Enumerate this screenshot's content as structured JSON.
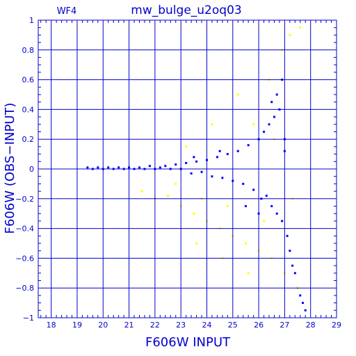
{
  "chart_data": {
    "type": "scatter",
    "title": "mw_bulge_u2oq03",
    "panel_label": "WF4",
    "xlabel": "F606W INPUT",
    "ylabel": "F606W (OBS−INPUT)",
    "xlim": [
      17.5,
      29
    ],
    "ylim": [
      -1,
      1
    ],
    "x_ticks": [
      "18",
      "19",
      "20",
      "21",
      "22",
      "23",
      "24",
      "25",
      "26",
      "27",
      "28",
      "29"
    ],
    "y_ticks": [
      "1",
      "0.8",
      "0.6",
      "0.4",
      "0.2",
      "0",
      "−0.2",
      "−0.4",
      "−0.6",
      "−0.8",
      "−1"
    ],
    "y_tick_values": [
      1,
      0.8,
      0.6,
      0.4,
      0.2,
      0,
      -0.2,
      -0.4,
      -0.6,
      -0.8,
      -1
    ],
    "grid": true,
    "colors": {
      "axis": "#0000cc",
      "blue_series": "#0000ff",
      "yellow_series": "#ffff00",
      "background": "#ffffff"
    },
    "series": [
      {
        "color": "#0000ff",
        "points": [
          [
            19.4,
            0.01
          ],
          [
            19.6,
            0.0
          ],
          [
            19.8,
            0.01
          ],
          [
            20.0,
            0.0
          ],
          [
            20.2,
            0.01
          ],
          [
            20.4,
            0.0
          ],
          [
            20.6,
            0.01
          ],
          [
            20.8,
            0.0
          ],
          [
            21.0,
            0.01
          ],
          [
            21.2,
            0.0
          ],
          [
            21.4,
            0.01
          ],
          [
            21.6,
            0.0
          ],
          [
            21.8,
            0.02
          ],
          [
            22.0,
            0.0
          ],
          [
            22.2,
            0.01
          ],
          [
            22.4,
            0.02
          ],
          [
            22.6,
            0.0
          ],
          [
            22.8,
            0.03
          ],
          [
            23.0,
            0.0
          ],
          [
            23.2,
            0.04
          ],
          [
            23.4,
            -0.03
          ],
          [
            23.6,
            0.05
          ],
          [
            23.8,
            -0.02
          ],
          [
            24.0,
            0.06
          ],
          [
            24.2,
            -0.05
          ],
          [
            24.4,
            0.08
          ],
          [
            24.6,
            -0.06
          ],
          [
            24.8,
            0.1
          ],
          [
            25.0,
            -0.08
          ],
          [
            25.2,
            0.12
          ],
          [
            25.4,
            -0.1
          ],
          [
            25.6,
            0.16
          ],
          [
            25.8,
            -0.14
          ],
          [
            26.0,
            0.2
          ],
          [
            26.1,
            -0.2
          ],
          [
            26.2,
            0.25
          ],
          [
            26.3,
            -0.18
          ],
          [
            26.4,
            0.3
          ],
          [
            26.5,
            -0.25
          ],
          [
            26.6,
            0.35
          ],
          [
            26.7,
            -0.3
          ],
          [
            26.8,
            0.4
          ],
          [
            26.9,
            -0.35
          ],
          [
            27.0,
            0.2
          ],
          [
            27.1,
            -0.45
          ],
          [
            27.2,
            -0.55
          ],
          [
            27.3,
            -0.65
          ],
          [
            27.4,
            -0.7
          ],
          [
            27.5,
            -0.8
          ],
          [
            27.6,
            -0.85
          ],
          [
            27.7,
            -0.9
          ],
          [
            27.8,
            -0.95
          ],
          [
            26.5,
            0.45
          ],
          [
            26.7,
            0.5
          ],
          [
            26.9,
            0.6
          ],
          [
            27.0,
            0.12
          ],
          [
            26.0,
            -0.3
          ],
          [
            25.5,
            -0.25
          ],
          [
            24.5,
            0.12
          ],
          [
            23.5,
            0.08
          ]
        ]
      },
      {
        "color": "#ffff00",
        "points": [
          [
            21.5,
            -0.15
          ],
          [
            22.0,
            -0.2
          ],
          [
            22.5,
            -0.18
          ],
          [
            23.0,
            -0.25
          ],
          [
            23.5,
            -0.3
          ],
          [
            24.0,
            -0.35
          ],
          [
            24.5,
            -0.4
          ],
          [
            25.0,
            -0.45
          ],
          [
            25.5,
            -0.5
          ],
          [
            26.0,
            -0.55
          ],
          [
            26.5,
            -0.6
          ],
          [
            27.0,
            -0.7
          ],
          [
            27.5,
            -0.8
          ],
          [
            22.8,
            -0.1
          ],
          [
            23.8,
            -0.2
          ],
          [
            24.8,
            -0.25
          ],
          [
            25.8,
            0.3
          ],
          [
            26.4,
            0.6
          ],
          [
            26.9,
            0.8
          ],
          [
            27.2,
            0.9
          ],
          [
            25.2,
            0.5
          ],
          [
            24.2,
            0.3
          ],
          [
            23.2,
            0.15
          ],
          [
            26.2,
            -0.35
          ],
          [
            25.6,
            -0.7
          ],
          [
            24.6,
            -0.6
          ],
          [
            23.6,
            -0.5
          ],
          [
            27.3,
            -0.2
          ],
          [
            26.6,
            0.2
          ],
          [
            27.6,
            0.95
          ]
        ]
      }
    ]
  }
}
